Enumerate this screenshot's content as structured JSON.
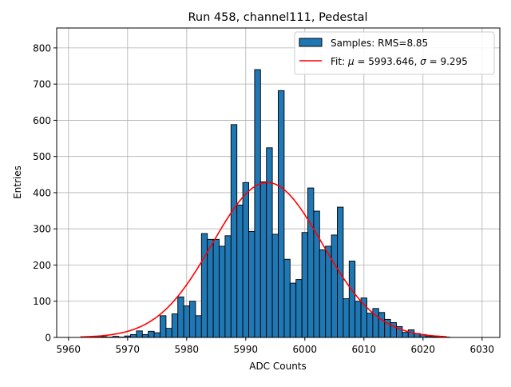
{
  "chart_data": {
    "type": "bar",
    "title": "Run 458, channel111, Pedestal",
    "xlabel": "ADC Counts",
    "ylabel": "Entries",
    "xlim": [
      5958,
      6033
    ],
    "ylim": [
      0,
      855
    ],
    "xticks": [
      5960,
      5970,
      5980,
      5990,
      6000,
      6010,
      6020,
      6030
    ],
    "yticks": [
      0,
      100,
      200,
      300,
      400,
      500,
      600,
      700,
      800
    ],
    "grid": true,
    "legend_position": "top-right",
    "colors": {
      "bars": "#1f77b4",
      "bar_edge": "#000000",
      "fit": "#ff0000",
      "grid": "#b0b0b0"
    },
    "series": [
      {
        "name": "Samples: RMS=8.85",
        "kind": "histogram",
        "bin_width": 1,
        "bins": [
          {
            "x": 5963,
            "y": 1
          },
          {
            "x": 5964,
            "y": 1
          },
          {
            "x": 5965,
            "y": 1
          },
          {
            "x": 5966,
            "y": 2
          },
          {
            "x": 5967,
            "y": 1
          },
          {
            "x": 5968,
            "y": 3
          },
          {
            "x": 5969,
            "y": 1
          },
          {
            "x": 5970,
            "y": 4
          },
          {
            "x": 5971,
            "y": 8
          },
          {
            "x": 5972,
            "y": 18
          },
          {
            "x": 5973,
            "y": 8
          },
          {
            "x": 5974,
            "y": 17
          },
          {
            "x": 5975,
            "y": 13
          },
          {
            "x": 5976,
            "y": 60
          },
          {
            "x": 5977,
            "y": 25
          },
          {
            "x": 5978,
            "y": 65
          },
          {
            "x": 5979,
            "y": 112
          },
          {
            "x": 5980,
            "y": 87
          },
          {
            "x": 5981,
            "y": 100
          },
          {
            "x": 5982,
            "y": 60
          },
          {
            "x": 5983,
            "y": 287
          },
          {
            "x": 5984,
            "y": 271
          },
          {
            "x": 5985,
            "y": 271
          },
          {
            "x": 5986,
            "y": 252
          },
          {
            "x": 5987,
            "y": 281
          },
          {
            "x": 5988,
            "y": 588
          },
          {
            "x": 5989,
            "y": 366
          },
          {
            "x": 5990,
            "y": 428
          },
          {
            "x": 5991,
            "y": 293
          },
          {
            "x": 5992,
            "y": 740
          },
          {
            "x": 5993,
            "y": 430
          },
          {
            "x": 5994,
            "y": 524
          },
          {
            "x": 5995,
            "y": 285
          },
          {
            "x": 5996,
            "y": 682
          },
          {
            "x": 5997,
            "y": 216
          },
          {
            "x": 5998,
            "y": 150
          },
          {
            "x": 5999,
            "y": 160
          },
          {
            "x": 6000,
            "y": 290
          },
          {
            "x": 6001,
            "y": 413
          },
          {
            "x": 6002,
            "y": 349
          },
          {
            "x": 6003,
            "y": 242
          },
          {
            "x": 6004,
            "y": 252
          },
          {
            "x": 6005,
            "y": 283
          },
          {
            "x": 6006,
            "y": 360
          },
          {
            "x": 6007,
            "y": 107
          },
          {
            "x": 6008,
            "y": 211
          },
          {
            "x": 6009,
            "y": 100
          },
          {
            "x": 6010,
            "y": 109
          },
          {
            "x": 6011,
            "y": 67
          },
          {
            "x": 6012,
            "y": 80
          },
          {
            "x": 6013,
            "y": 69
          },
          {
            "x": 6014,
            "y": 50
          },
          {
            "x": 6015,
            "y": 41
          },
          {
            "x": 6016,
            "y": 30
          },
          {
            "x": 6017,
            "y": 14
          },
          {
            "x": 6018,
            "y": 21
          },
          {
            "x": 6019,
            "y": 11
          },
          {
            "x": 6020,
            "y": 8
          },
          {
            "x": 6021,
            "y": 3
          },
          {
            "x": 6022,
            "y": 2
          },
          {
            "x": 6023,
            "y": 1
          },
          {
            "x": 6024,
            "y": 1
          }
        ]
      },
      {
        "name_prefix": "Fit: ",
        "name_mu": "μ",
        "name_mid": " = 5993.646, ",
        "name_sigma": "σ",
        "name_suffix": " = 9.295",
        "kind": "gaussian",
        "mu": 5993.646,
        "sigma": 9.295,
        "amplitude": 428,
        "x_range": [
          5962,
          6024
        ]
      }
    ]
  }
}
